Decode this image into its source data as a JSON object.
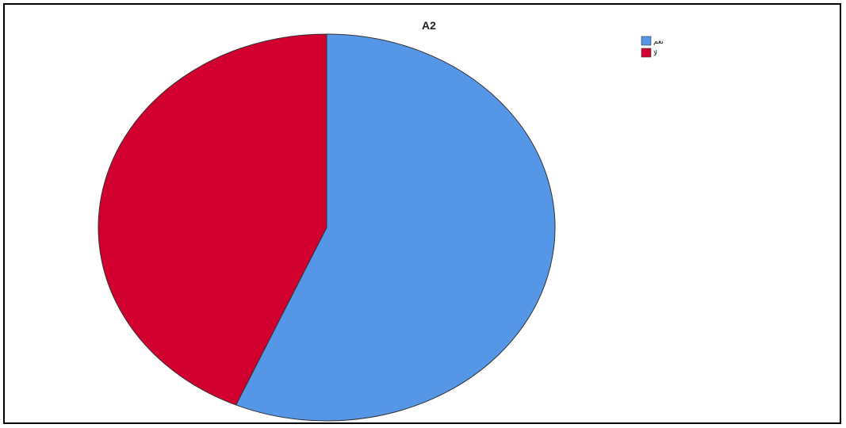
{
  "chart_data": {
    "type": "pie",
    "title": "A2",
    "categories": [
      "نعم",
      "لا"
    ],
    "values": [
      56.5,
      43.5
    ],
    "colors": [
      "#5596e6",
      "#d1002f"
    ],
    "legend_position": "top-right",
    "slice_outline_color": "#333333"
  }
}
